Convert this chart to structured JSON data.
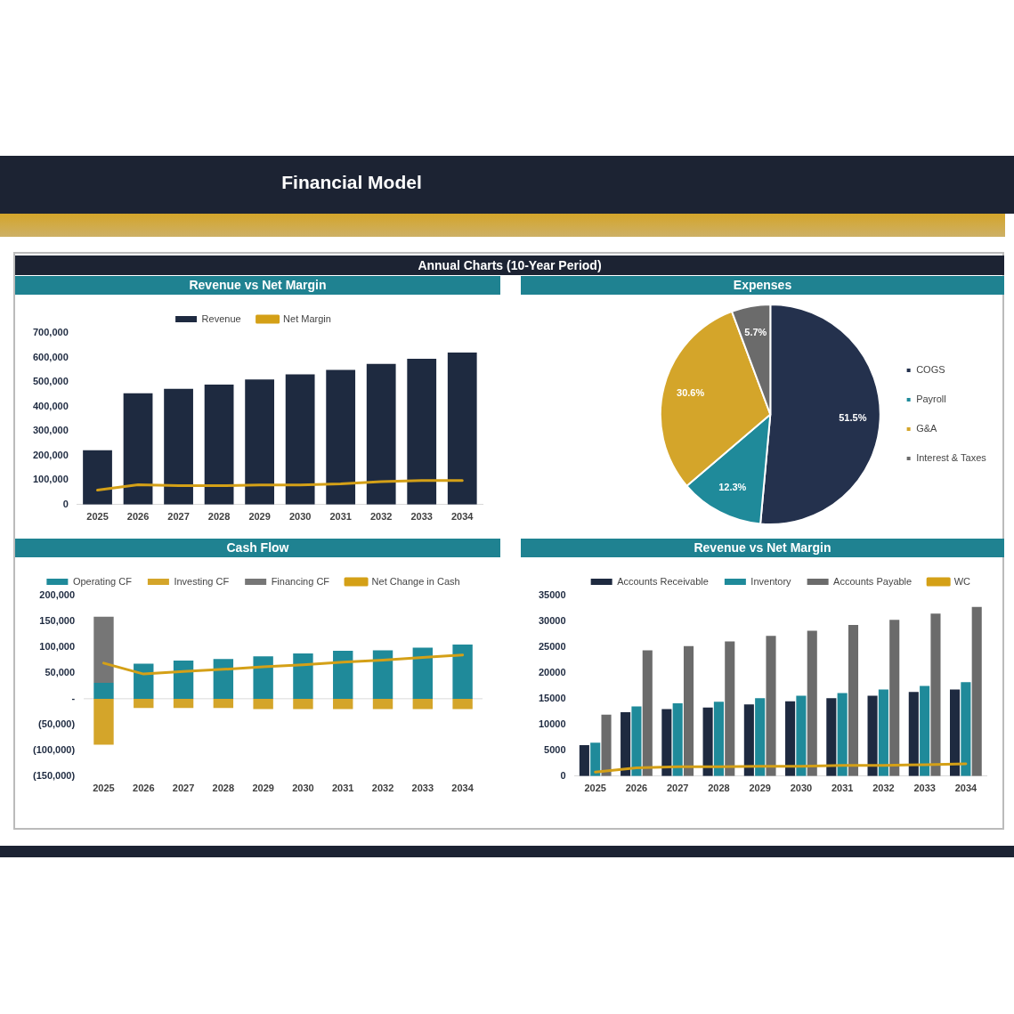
{
  "chart_data": [
    {
      "type": "bar",
      "title": "Revenue vs Net Margin",
      "annotations": [
        "Financial Model",
        "Annual Charts (10-Year Period)"
      ],
      "categories": [
        "2025",
        "2026",
        "2027",
        "2028",
        "2029",
        "2030",
        "2031",
        "2032",
        "2033",
        "2034"
      ],
      "series": [
        {
          "name": "Revenue",
          "color": "#1e2a40",
          "values": [
            222000,
            454000,
            472000,
            489000,
            510000,
            531000,
            549000,
            574000,
            595000,
            620000
          ]
        },
        {
          "name": "Net Margin",
          "type": "line",
          "color": "#d4a017",
          "values": [
            59000,
            81000,
            77000,
            77000,
            80000,
            80000,
            85000,
            94000,
            98000,
            98000
          ]
        }
      ],
      "ylim": [
        0,
        700000
      ],
      "yticks": [
        {
          "value": 0,
          "label": "0"
        },
        {
          "value": 100000,
          "label": "100,000"
        },
        {
          "value": 200000,
          "label": "200,000"
        },
        {
          "value": 300000,
          "label": "300,000"
        },
        {
          "value": 400000,
          "label": "400,000"
        },
        {
          "value": 500000,
          "label": "500,000"
        },
        {
          "value": 600000,
          "label": "600,000"
        },
        {
          "value": 700000,
          "label": "700,000"
        }
      ],
      "legend": "top",
      "marker": "none",
      "line_style": "solid"
    },
    {
      "type": "pie",
      "title": "Expenses",
      "categories": [
        "COGS",
        "Payroll",
        "G&A",
        "Interest & Taxes"
      ],
      "values": [
        51.5,
        12.3,
        30.6,
        5.7
      ],
      "colors": [
        "#24314d",
        "#1f8a9a",
        "#d4a52a",
        "#6b6b6b"
      ],
      "value_labels": [
        "51.5%",
        "12.3%",
        "30.6%",
        "5.7%"
      ],
      "legend": "right"
    },
    {
      "type": "bar",
      "title": "Cash Flow",
      "stacked": true,
      "categories": [
        "2025",
        "2026",
        "2027",
        "2028",
        "2029",
        "2030",
        "2031",
        "2032",
        "2033",
        "2034"
      ],
      "series": [
        {
          "name": "Operating CF",
          "color": "#1f8a9a",
          "values": [
            31000,
            68000,
            74000,
            77000,
            82000,
            88000,
            93000,
            94000,
            99000,
            105000
          ]
        },
        {
          "name": "Investing CF",
          "color": "#d4a52a",
          "values": [
            -89000,
            -18000,
            -18000,
            -18000,
            -20000,
            -20000,
            -20000,
            -20000,
            -20000,
            -20000
          ]
        },
        {
          "name": "Financing CF",
          "color": "#767676",
          "values": [
            128000,
            0,
            0,
            0,
            0,
            0,
            0,
            0,
            0,
            0
          ]
        },
        {
          "name": "Net Change in Cash",
          "type": "line",
          "color": "#d4a017",
          "values": [
            69000,
            48000,
            53000,
            57000,
            62000,
            66000,
            71000,
            75000,
            80000,
            85000
          ]
        }
      ],
      "ylim": [
        -150000,
        200000
      ],
      "yticks": [
        {
          "value": -150000,
          "label": "(150,000)"
        },
        {
          "value": -100000,
          "label": "(100,000)"
        },
        {
          "value": -50000,
          "label": "(50,000)"
        },
        {
          "value": 0,
          "label": "-"
        },
        {
          "value": 50000,
          "label": "50,000"
        },
        {
          "value": 100000,
          "label": "100,000"
        },
        {
          "value": 150000,
          "label": "150,000"
        },
        {
          "value": 200000,
          "label": "200,000"
        }
      ],
      "legend": "top",
      "marker": "none",
      "line_style": "solid"
    },
    {
      "type": "bar",
      "title": "Revenue vs Net Margin",
      "categories": [
        "2025",
        "2026",
        "2027",
        "2028",
        "2029",
        "2030",
        "2031",
        "2032",
        "2033",
        "2034"
      ],
      "series": [
        {
          "name": "Accounts Receivable",
          "color": "#1e2a40",
          "values": [
            6000,
            12400,
            13000,
            13300,
            13900,
            14500,
            15100,
            15600,
            16300,
            16800
          ]
        },
        {
          "name": "Inventory",
          "color": "#1f8a9a",
          "values": [
            6500,
            13500,
            14100,
            14400,
            15100,
            15600,
            16100,
            16800,
            17500,
            18200
          ]
        },
        {
          "name": "Accounts Payable",
          "color": "#6b6b6b",
          "values": [
            11900,
            24400,
            25200,
            26100,
            27200,
            28200,
            29300,
            30300,
            31500,
            32800
          ]
        },
        {
          "name": "WC",
          "type": "line",
          "color": "#d4a017",
          "values": [
            800,
            1600,
            1800,
            1800,
            1900,
            1900,
            2100,
            2100,
            2200,
            2400
          ]
        }
      ],
      "ylim": [
        0,
        35000
      ],
      "yticks": [
        0,
        5000,
        10000,
        15000,
        20000,
        25000,
        30000,
        35000
      ],
      "legend": "top right",
      "marker": "none",
      "line_style": "solid"
    }
  ]
}
